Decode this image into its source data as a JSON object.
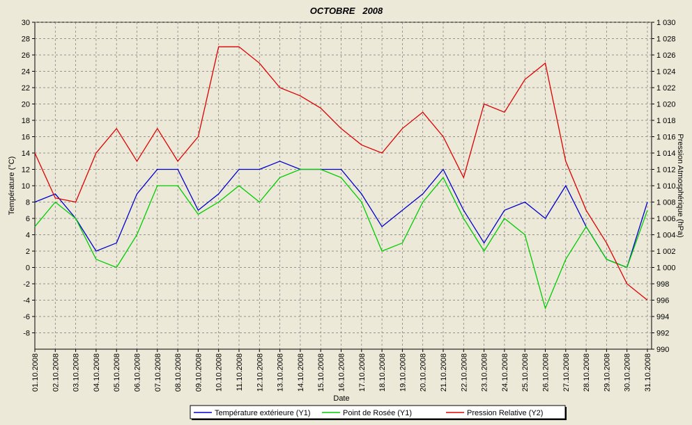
{
  "chart_data": {
    "type": "line",
    "title": "OCTOBRE   2008",
    "x_label": "Date",
    "y_label": "Température (°C)",
    "y2_label": "Pression Atmosphérique (hPa)",
    "x": [
      "01.10.2008",
      "02.10.2008",
      "03.10.2008",
      "04.10.2008",
      "05.10.2008",
      "06.10.2008",
      "07.10.2008",
      "08.10.2008",
      "09.10.2008",
      "10.10.2008",
      "11.10.2008",
      "12.10.2008",
      "13.10.2008",
      "14.10.2008",
      "15.10.2008",
      "16.10.2008",
      "17.10.2008",
      "18.10.2008",
      "19.10.2008",
      "20.10.2008",
      "21.10.2008",
      "22.10.2008",
      "23.10.2008",
      "24.10.2008",
      "25.10.2008",
      "26.10.2008",
      "27.10.2008",
      "28.10.2008",
      "29.10.2008",
      "30.10.2008",
      "31.10.2008"
    ],
    "series": [
      {
        "name": "Température extérieure (Y1)",
        "color": "#0000cc",
        "axis": "y",
        "values": [
          8,
          9,
          6,
          2,
          3,
          9,
          12,
          12,
          7,
          9,
          12,
          12,
          13,
          12,
          12,
          12,
          9,
          5,
          7,
          9,
          12,
          7,
          3,
          7,
          8,
          6,
          10,
          5,
          1,
          0,
          8
        ]
      },
      {
        "name": "Point de Rosée (Y1)",
        "color": "#00cc00",
        "axis": "y",
        "values": [
          5,
          8,
          6,
          1,
          0,
          4,
          10,
          10,
          6.5,
          8,
          10,
          8,
          11,
          12,
          12,
          11,
          8,
          2,
          3,
          8,
          11,
          6,
          2,
          6,
          4,
          -5,
          1,
          5,
          1,
          0,
          7
        ]
      },
      {
        "name": "Pression Relative (Y2)",
        "color": "#dd0000",
        "axis": "y2",
        "values": [
          1014,
          1008.5,
          1008,
          1014,
          1017,
          1013,
          1017,
          1013,
          1016,
          1027,
          1027,
          1025,
          1022,
          1021,
          1019.5,
          1017,
          1015,
          1014,
          1017,
          1019,
          1016,
          1011,
          1020,
          1019,
          1023,
          1025,
          1013,
          1007,
          1003,
          998,
          996
        ]
      }
    ],
    "ylim": [
      -10,
      30
    ],
    "yticks": [
      -8,
      -6,
      -4,
      -2,
      0,
      2,
      4,
      6,
      8,
      10,
      12,
      14,
      16,
      18,
      20,
      22,
      24,
      26,
      28,
      30
    ],
    "y2lim": [
      990,
      1030
    ],
    "y2ticks": [
      990,
      992,
      994,
      996,
      998,
      {
        "value": 1000,
        "label": "1 000"
      },
      {
        "value": 1002,
        "label": "1 002"
      },
      {
        "value": 1004,
        "label": "1 004"
      },
      {
        "value": 1006,
        "label": "1 006"
      },
      {
        "value": 1008,
        "label": "1 008"
      },
      {
        "value": 1010,
        "label": "1 010"
      },
      {
        "value": 1012,
        "label": "1 012"
      },
      {
        "value": 1014,
        "label": "1 014"
      },
      {
        "value": 1016,
        "label": "1 016"
      },
      {
        "value": 1018,
        "label": "1 018"
      },
      {
        "value": 1020,
        "label": "1 020"
      },
      {
        "value": 1022,
        "label": "1 022"
      },
      {
        "value": 1024,
        "label": "1 024"
      },
      {
        "value": 1026,
        "label": "1 026"
      },
      {
        "value": 1028,
        "label": "1 028"
      },
      {
        "value": 1030,
        "label": "1 030"
      }
    ],
    "grid": true,
    "legend": "bottom"
  }
}
